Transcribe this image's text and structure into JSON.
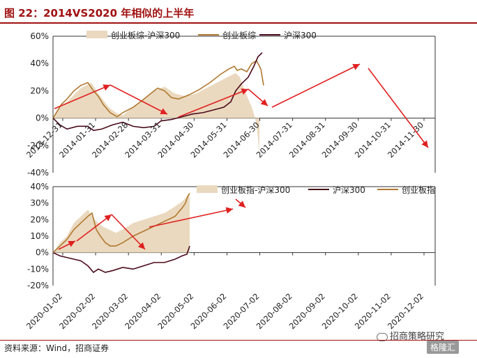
{
  "title": "图 22：2014VS2020 年相似的上半年",
  "source": "资料来源：Wind，招商证券",
  "watermark": "招商策略研究",
  "logo": "格隆汇",
  "chart_data": [
    {
      "type": "area+line",
      "x_labels": [
        "2013-12-31",
        "2014-01-31",
        "2014-02-28",
        "2014-03-31",
        "2014-04-30",
        "2014-05-31",
        "2014-06-30",
        "2014-07-31",
        "2014-08-31",
        "2014-09-30",
        "2014-10-31",
        "2014-11-30"
      ],
      "y_ticks": [
        "60%",
        "40%",
        "20%",
        "0%",
        "-20%",
        "-40%"
      ],
      "ylim": [
        -40,
        60
      ],
      "legend": [
        "创业板综-沪深300",
        "创业板综",
        "沪深300"
      ],
      "series": [
        {
          "name": "创业板综-沪深300",
          "kind": "area",
          "color": "#ead9bf",
          "values": [
            [
              0,
              0
            ],
            [
              10,
              8
            ],
            [
              20,
              12
            ],
            [
              40,
              22
            ],
            [
              55,
              26
            ],
            [
              65,
              18
            ],
            [
              80,
              8
            ],
            [
              90,
              4
            ],
            [
              100,
              2
            ],
            [
              115,
              8
            ],
            [
              130,
              14
            ],
            [
              145,
              20
            ],
            [
              160,
              23
            ],
            [
              175,
              18
            ],
            [
              190,
              16
            ],
            [
              205,
              18
            ],
            [
              220,
              22
            ],
            [
              235,
              26
            ],
            [
              250,
              30
            ],
            [
              262,
              33
            ],
            [
              268,
              30
            ],
            [
              275,
              20
            ],
            [
              285,
              8
            ],
            [
              290,
              0
            ],
            [
              293,
              -10
            ],
            [
              296,
              -25
            ]
          ]
        },
        {
          "name": "创业板综",
          "kind": "line",
          "color": "#b07830",
          "values": [
            [
              0,
              0
            ],
            [
              6,
              5
            ],
            [
              12,
              10
            ],
            [
              20,
              14
            ],
            [
              30,
              20
            ],
            [
              40,
              24
            ],
            [
              50,
              26
            ],
            [
              58,
              20
            ],
            [
              65,
              16
            ],
            [
              72,
              10
            ],
            [
              82,
              4
            ],
            [
              92,
              1
            ],
            [
              100,
              4
            ],
            [
              115,
              8
            ],
            [
              128,
              13
            ],
            [
              140,
              18
            ],
            [
              150,
              22
            ],
            [
              160,
              20
            ],
            [
              170,
              15
            ],
            [
              180,
              14
            ],
            [
              195,
              17
            ],
            [
              210,
              21
            ],
            [
              225,
              26
            ],
            [
              240,
              32
            ],
            [
              252,
              36
            ],
            [
              260,
              38
            ],
            [
              264,
              35
            ],
            [
              270,
              36
            ],
            [
              278,
              34
            ],
            [
              285,
              40
            ],
            [
              292,
              42
            ],
            [
              298,
              36
            ],
            [
              300,
              30
            ],
            [
              302,
              24
            ]
          ]
        },
        {
          "name": "沪深300",
          "kind": "line",
          "color": "#4a0a1a",
          "values": [
            [
              0,
              0
            ],
            [
              10,
              -5
            ],
            [
              20,
              -8
            ],
            [
              35,
              -6
            ],
            [
              50,
              -6
            ],
            [
              58,
              -9
            ],
            [
              70,
              -8
            ],
            [
              85,
              -5
            ],
            [
              100,
              -3
            ],
            [
              115,
              -6
            ],
            [
              130,
              -7
            ],
            [
              145,
              -6
            ],
            [
              155,
              -2
            ],
            [
              170,
              -1
            ],
            [
              185,
              1
            ],
            [
              200,
              3
            ],
            [
              215,
              4
            ],
            [
              230,
              6
            ],
            [
              245,
              8
            ],
            [
              255,
              12
            ],
            [
              262,
              20
            ],
            [
              270,
              25
            ],
            [
              280,
              30
            ],
            [
              288,
              38
            ],
            [
              294,
              45
            ],
            [
              300,
              48
            ]
          ]
        }
      ],
      "annotations": "red trend arrows"
    },
    {
      "type": "area+line",
      "x_labels": [
        "2020-01-02",
        "2020-02-02",
        "2020-03-02",
        "2020-04-02",
        "2020-05-02",
        "2020-06-02",
        "2020-07-02",
        "2020-08-02",
        "2020-09-02",
        "2020-10-02",
        "2020-11-02",
        "2020-12-02"
      ],
      "y_ticks": [
        "40%",
        "30%",
        "20%",
        "10%",
        "0%",
        "-10%",
        "-20%"
      ],
      "ylim": [
        -20,
        40
      ],
      "legend": [
        "创业板指-沪深300",
        "沪深300",
        "创业板指"
      ],
      "series": [
        {
          "name": "创业板指-沪深300",
          "kind": "area",
          "color": "#ead9bf",
          "values": [
            [
              0,
              0
            ],
            [
              10,
              6
            ],
            [
              20,
              10
            ],
            [
              30,
              18
            ],
            [
              40,
              22
            ],
            [
              50,
              26
            ],
            [
              60,
              20
            ],
            [
              70,
              16
            ],
            [
              80,
              14
            ],
            [
              90,
              12
            ],
            [
              100,
              14
            ],
            [
              115,
              18
            ],
            [
              130,
              20
            ],
            [
              145,
              22
            ],
            [
              160,
              24
            ],
            [
              175,
              28
            ],
            [
              185,
              31
            ],
            [
              192,
              34
            ],
            [
              196,
              36
            ]
          ]
        },
        {
          "name": "沪深300",
          "kind": "line",
          "color": "#4a0a1a",
          "values": [
            [
              0,
              0
            ],
            [
              10,
              -2
            ],
            [
              20,
              -3
            ],
            [
              30,
              -4
            ],
            [
              40,
              -5
            ],
            [
              50,
              -8
            ],
            [
              58,
              -12
            ],
            [
              65,
              -10
            ],
            [
              75,
              -12
            ],
            [
              85,
              -11
            ],
            [
              100,
              -9
            ],
            [
              115,
              -10
            ],
            [
              130,
              -8
            ],
            [
              145,
              -6
            ],
            [
              160,
              -6
            ],
            [
              175,
              -4
            ],
            [
              185,
              -2
            ],
            [
              192,
              -1
            ],
            [
              196,
              4
            ]
          ]
        },
        {
          "name": "创业板指",
          "kind": "line",
          "color": "#b07830",
          "values": [
            [
              0,
              0
            ],
            [
              10,
              4
            ],
            [
              20,
              8
            ],
            [
              30,
              14
            ],
            [
              40,
              18
            ],
            [
              50,
              22
            ],
            [
              56,
              24
            ],
            [
              62,
              14
            ],
            [
              68,
              10
            ],
            [
              75,
              6
            ],
            [
              82,
              4
            ],
            [
              90,
              4
            ],
            [
              100,
              6
            ],
            [
              115,
              10
            ],
            [
              130,
              13
            ],
            [
              145,
              16
            ],
            [
              160,
              19
            ],
            [
              175,
              22
            ],
            [
              185,
              27
            ],
            [
              190,
              30
            ],
            [
              193,
              34
            ],
            [
              196,
              36
            ]
          ]
        }
      ],
      "annotations": "red trend arrows"
    }
  ]
}
